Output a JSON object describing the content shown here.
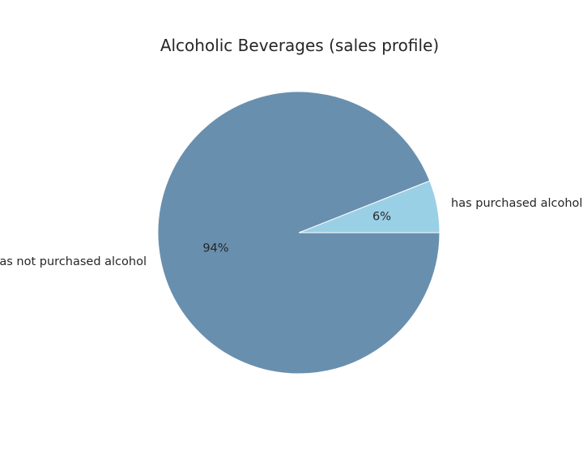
{
  "chart_data": {
    "type": "pie",
    "title": "Alcoholic Beverages (sales profile)",
    "slices": [
      {
        "label": "has purchased alcohol",
        "value": 6,
        "pct_label": "6%",
        "color": "#9ad0e6"
      },
      {
        "label": "has not purchased alcohol",
        "value": 94,
        "pct_label": "94%",
        "color": "#698fae"
      }
    ],
    "start_angle_deg": 0,
    "direction": "counterclockwise",
    "legend": "none"
  }
}
